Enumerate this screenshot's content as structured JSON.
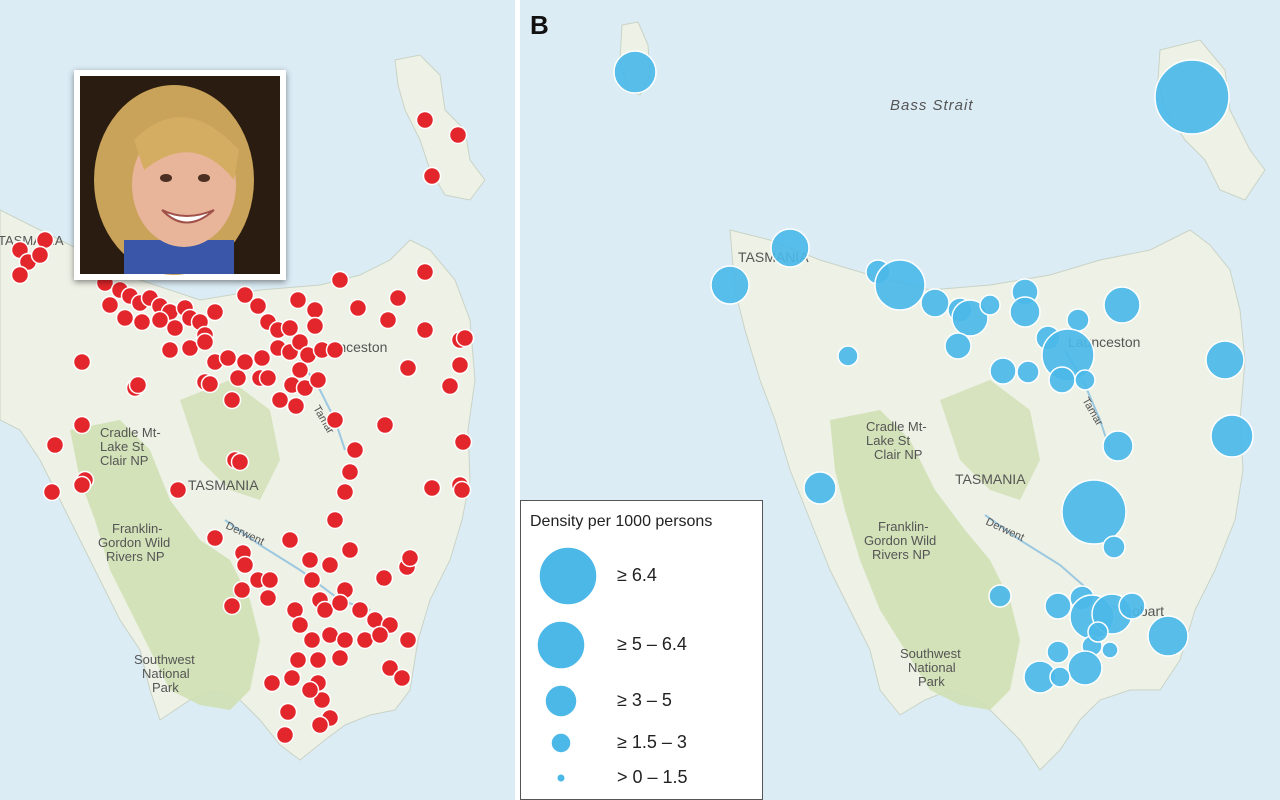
{
  "panel_b_letter": "B",
  "map_a": {
    "labels": {
      "launceston": "Launceston",
      "cradle": [
        "Cradle Mt-",
        "Lake St",
        "Clair NP"
      ],
      "tasmania": "TASMANIA",
      "franklin": [
        "Franklin-",
        "Gordon Wild",
        "Rivers NP"
      ],
      "southwest": [
        "Southwest",
        "National",
        "Park"
      ],
      "river": "Tamar",
      "derwent": "Derwent",
      "tasmania_edge": "TASMANIA"
    },
    "point_color": "#e3262b"
  },
  "map_b": {
    "labels": {
      "bass_strait": "Bass Strait",
      "tasmania_nw": "TASMANIA",
      "launceston": "Launceston",
      "cradle": [
        "Cradle Mt-",
        "Lake St",
        "Clair NP"
      ],
      "tasmania": "TASMANIA",
      "franklin": [
        "Franklin-",
        "Gordon Wild",
        "Rivers NP"
      ],
      "southwest": [
        "Southwest",
        "National",
        "Park"
      ],
      "tamar": "Tamar",
      "derwent": "Derwent",
      "hobart": "Hobart"
    },
    "bubble_color": "#4bb8e8"
  },
  "legend": {
    "title": "Density per 1000 persons",
    "items": [
      {
        "label": "≥ 6.4"
      },
      {
        "label": "≥ 5 – 6.4"
      },
      {
        "label": "≥ 3 – 5"
      },
      {
        "label": "≥ 1.5 – 3"
      },
      {
        "label": "> 0 – 1.5"
      }
    ]
  },
  "colors": {
    "water": "#dcecf5",
    "land": "#eef1e6",
    "forest": "#cfe0b4"
  }
}
